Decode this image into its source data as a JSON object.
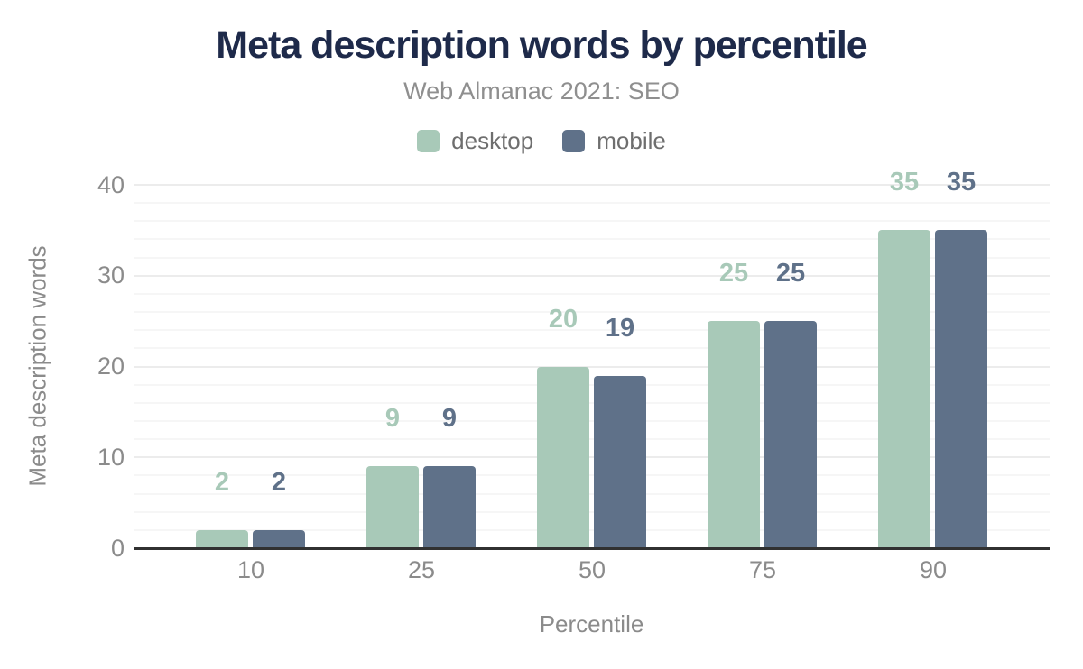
{
  "chart_data": {
    "type": "bar",
    "title": "Meta description words by percentile",
    "subtitle": "Web Almanac 2021: SEO",
    "xlabel": "Percentile",
    "ylabel": "Meta description words",
    "categories": [
      "10",
      "25",
      "50",
      "75",
      "90"
    ],
    "series": [
      {
        "name": "desktop",
        "color": "#a8c9b8",
        "values": [
          2,
          9,
          20,
          25,
          35
        ]
      },
      {
        "name": "mobile",
        "color": "#5f7189",
        "values": [
          2,
          9,
          19,
          25,
          35
        ]
      }
    ],
    "data_labels": {
      "desktop": [
        "2",
        "9",
        "20",
        "25",
        "35"
      ],
      "mobile": [
        "2",
        "9",
        "19",
        "25",
        "35"
      ]
    },
    "ylim": [
      0,
      40
    ],
    "yticks": [
      "0",
      "10",
      "20",
      "30",
      "40"
    ],
    "grid": {
      "major_step": 10,
      "minor_step": 2
    },
    "legend_position": "top"
  },
  "colors": {
    "title": "#1e2a4a",
    "subtitle": "#8f8f8f",
    "tick_label": "#8b8b8b",
    "axis_title": "#8b8b8b",
    "legend_label": "#6e6e6e",
    "grid_major": "#ececec",
    "grid_minor": "#f6f6f6",
    "axis_line": "#313131",
    "background": "#ffffff"
  }
}
